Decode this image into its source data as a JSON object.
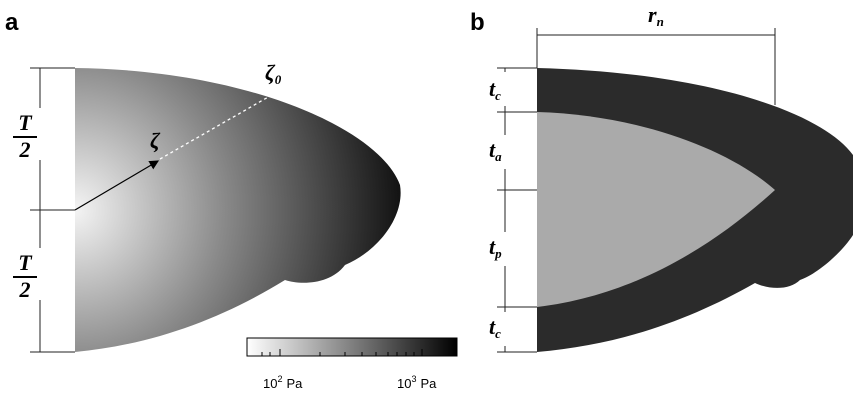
{
  "panel_a": {
    "label": "a",
    "half_thickness": [
      {
        "num": "T",
        "den": "2"
      },
      {
        "num": "T",
        "den": "2"
      }
    ],
    "zeta": "ζ",
    "zeta0": {
      "base": "ζ",
      "sub": "0"
    },
    "colorbar": {
      "ticks": [
        {
          "base": "10",
          "exp": "2",
          "unit": "Pa"
        },
        {
          "base": "10",
          "exp": "3",
          "unit": "Pa"
        }
      ]
    }
  },
  "panel_b": {
    "label": "b",
    "radius": {
      "base": "r",
      "sub": "n"
    },
    "layers": [
      {
        "base": "t",
        "sub": "c"
      },
      {
        "base": "t",
        "sub": "a"
      },
      {
        "base": "t",
        "sub": "p"
      },
      {
        "base": "t",
        "sub": "c"
      }
    ]
  }
}
